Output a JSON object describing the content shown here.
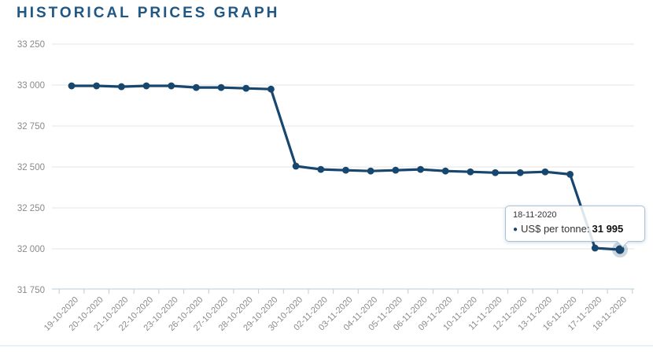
{
  "title": "HISTORICAL PRICES GRAPH",
  "colors": {
    "title": "#205783",
    "line": "#17466f",
    "grid": "#e4e4e4",
    "axis": "#b6cede",
    "axis_label": "#8a8a8a",
    "tooltip_border": "#a9c2d7"
  },
  "chart_data": {
    "type": "line",
    "title": "HISTORICAL PRICES GRAPH",
    "categories": [
      "19-10-2020",
      "20-10-2020",
      "21-10-2020",
      "22-10-2020",
      "23-10-2020",
      "26-10-2020",
      "27-10-2020",
      "28-10-2020",
      "29-10-2020",
      "30-10-2020",
      "02-11-2020",
      "03-11-2020",
      "04-11-2020",
      "05-11-2020",
      "06-11-2020",
      "09-11-2020",
      "10-11-2020",
      "11-11-2020",
      "12-11-2020",
      "13-11-2020",
      "16-11-2020",
      "17-11-2020",
      "18-11-2020"
    ],
    "series": [
      {
        "name": "US$ per tonne",
        "values": [
          32995,
          32995,
          32990,
          32995,
          32995,
          32985,
          32985,
          32980,
          32975,
          32505,
          32485,
          32480,
          32475,
          32480,
          32485,
          32475,
          32470,
          32465,
          32465,
          32470,
          32455,
          32005,
          31995
        ]
      }
    ],
    "ylim": [
      31750,
      33250
    ],
    "yticks": [
      33250,
      33000,
      32750,
      32500,
      32250,
      32000,
      31750
    ],
    "ytick_labels": [
      "33 250",
      "33 000",
      "32 750",
      "32 500",
      "32 250",
      "32 000",
      "31 750"
    ],
    "grid": "horizontal",
    "legend": "none",
    "marker": "circle",
    "highlight_index": 22
  },
  "tooltip": {
    "date": "18-11-2020",
    "bullet": "●",
    "label_text": "US$ per tonne:",
    "value": "31 995"
  }
}
